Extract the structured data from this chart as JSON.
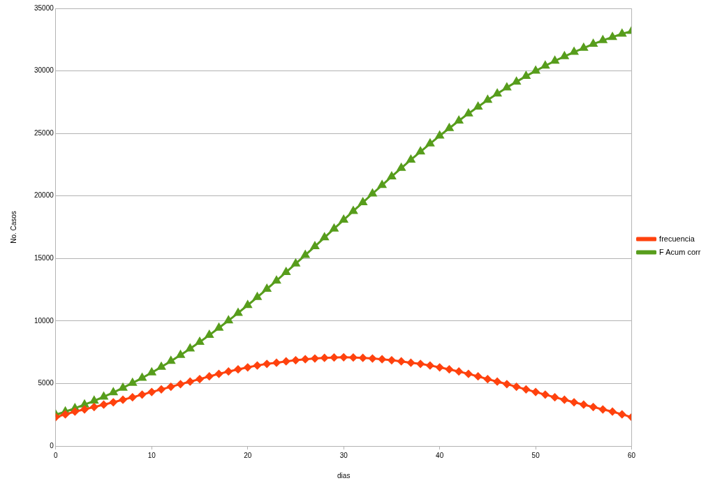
{
  "chart_data": {
    "type": "line",
    "xlabel": "dias",
    "ylabel": "No. Casos",
    "x": [
      0,
      1,
      2,
      3,
      4,
      5,
      6,
      7,
      8,
      9,
      10,
      11,
      12,
      13,
      14,
      15,
      16,
      17,
      18,
      19,
      20,
      21,
      22,
      23,
      24,
      25,
      26,
      27,
      28,
      29,
      30,
      31,
      32,
      33,
      34,
      35,
      36,
      37,
      38,
      39,
      40,
      41,
      42,
      43,
      44,
      45,
      46,
      47,
      48,
      49,
      50,
      51,
      52,
      53,
      54,
      55,
      56,
      57,
      58,
      59,
      60
    ],
    "xlim": [
      0,
      60
    ],
    "xticks": [
      0,
      10,
      20,
      30,
      40,
      50,
      60
    ],
    "ylim": [
      0,
      35000
    ],
    "yticks": [
      0,
      5000,
      10000,
      15000,
      20000,
      25000,
      30000,
      35000
    ],
    "grid": "y",
    "legend": "right",
    "line_style": "solid",
    "series": [
      {
        "name": "frecuencia",
        "color": "#ff420e",
        "marker": "diamond",
        "values": [
          2310,
          2530,
          2750,
          2930,
          3120,
          3310,
          3500,
          3700,
          3900,
          4110,
          4320,
          4530,
          4740,
          4950,
          5150,
          5350,
          5570,
          5770,
          5960,
          6130,
          6290,
          6440,
          6570,
          6660,
          6770,
          6860,
          6940,
          7000,
          7050,
          7080,
          7100,
          7080,
          7050,
          7000,
          6940,
          6860,
          6770,
          6660,
          6570,
          6440,
          6290,
          6130,
          5960,
          5770,
          5570,
          5350,
          5150,
          4950,
          4740,
          4530,
          4320,
          4110,
          3900,
          3700,
          3500,
          3310,
          3120,
          2930,
          2750,
          2530,
          2310
        ]
      },
      {
        "name": "F Acum corr",
        "color": "#579d1c",
        "marker": "triangle",
        "values": [
          2500,
          2750,
          3020,
          3310,
          3610,
          3940,
          4280,
          4650,
          5040,
          5440,
          5870,
          6320,
          6790,
          7270,
          7790,
          8320,
          8870,
          9450,
          10030,
          10640,
          11260,
          11900,
          12560,
          13220,
          13900,
          14580,
          15270,
          15960,
          16670,
          17380,
          18080,
          18790,
          19480,
          20180,
          20860,
          21550,
          22230,
          22890,
          23540,
          24180,
          24810,
          25410,
          26010,
          26590,
          27130,
          27670,
          28170,
          28670,
          29130,
          29580,
          30000,
          30410,
          30800,
          31160,
          31510,
          31830,
          32150,
          32440,
          32700,
          32960,
          33180
        ]
      }
    ]
  }
}
